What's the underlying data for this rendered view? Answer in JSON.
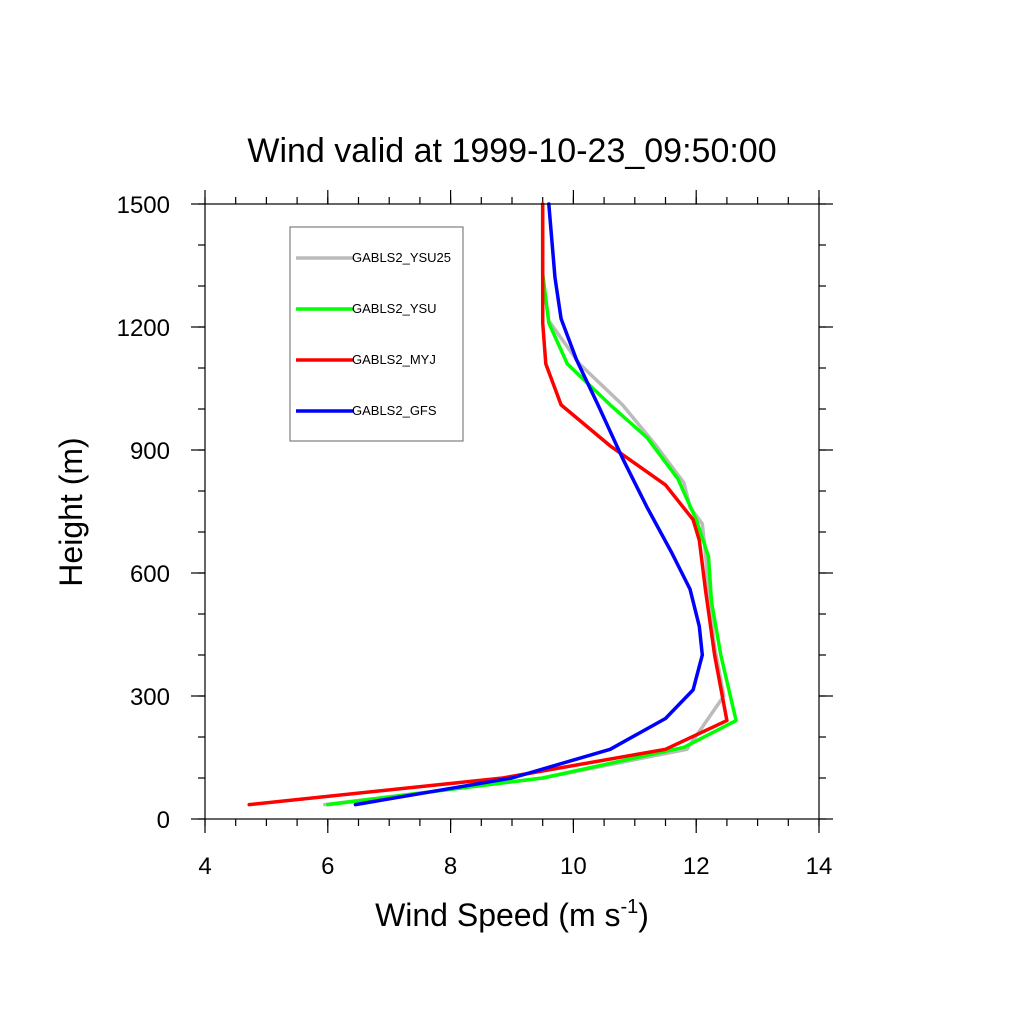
{
  "chart_data": {
    "type": "line",
    "title": "Wind valid at 1999-10-23_09:50:00",
    "xlabel": "Wind Speed (m s",
    "xlabel_sup": "-1",
    "xlabel_end": ")",
    "ylabel": "Height (m)",
    "xlim": [
      4,
      14
    ],
    "ylim": [
      0,
      1500
    ],
    "x_ticks": [
      4,
      6,
      8,
      10,
      12,
      14
    ],
    "y_ticks": [
      0,
      300,
      600,
      900,
      1200,
      1500
    ],
    "x_tick_labels": [
      "4",
      "6",
      "8",
      "10",
      "12",
      "14"
    ],
    "y_tick_labels": [
      "0",
      "300",
      "600",
      "900",
      "1200",
      "1500"
    ],
    "x_minor_step": 0.5,
    "y_minor_step": 100,
    "legend_position": "top-left",
    "series": [
      {
        "name": "GABLS2_YSU25",
        "color": "#bbbbbb",
        "x": [
          5.95,
          9.5,
          11.85,
          12.45,
          12.3,
          12.2,
          12.15,
          12.1,
          11.9,
          11.8,
          11.35,
          10.8,
          10.1,
          9.6,
          9.5,
          9.5
        ],
        "y": [
          35,
          100,
          170,
          300,
          420,
          550,
          650,
          720,
          760,
          820,
          910,
          1010,
          1110,
          1215,
          1320,
          1500
        ]
      },
      {
        "name": "GABLS2_YSU",
        "color": "#00ff00",
        "x": [
          6.0,
          9.5,
          11.8,
          12.65,
          12.4,
          12.25,
          12.2,
          12.0,
          11.7,
          11.2,
          10.6,
          9.9,
          9.6,
          9.5,
          9.5
        ],
        "y": [
          35,
          100,
          175,
          240,
          400,
          530,
          640,
          730,
          830,
          930,
          1010,
          1110,
          1210,
          1330,
          1500
        ]
      },
      {
        "name": "GABLS2_MYJ",
        "color": "#ff0000",
        "x": [
          4.72,
          8.85,
          11.5,
          12.5,
          12.3,
          12.15,
          12.05,
          11.95,
          11.5,
          10.6,
          9.8,
          9.55,
          9.5,
          9.5
        ],
        "y": [
          35,
          100,
          170,
          240,
          400,
          560,
          680,
          730,
          815,
          910,
          1010,
          1110,
          1210,
          1500
        ]
      },
      {
        "name": "GABLS2_GFS",
        "color": "#0000ff",
        "x": [
          6.45,
          9.0,
          10.6,
          11.5,
          11.95,
          12.1,
          12.05,
          11.9,
          11.6,
          11.2,
          10.8,
          10.4,
          10.05,
          9.8,
          9.7,
          9.6
        ],
        "y": [
          35,
          100,
          170,
          245,
          315,
          400,
          470,
          560,
          650,
          760,
          880,
          1010,
          1120,
          1220,
          1320,
          1500
        ]
      }
    ]
  }
}
